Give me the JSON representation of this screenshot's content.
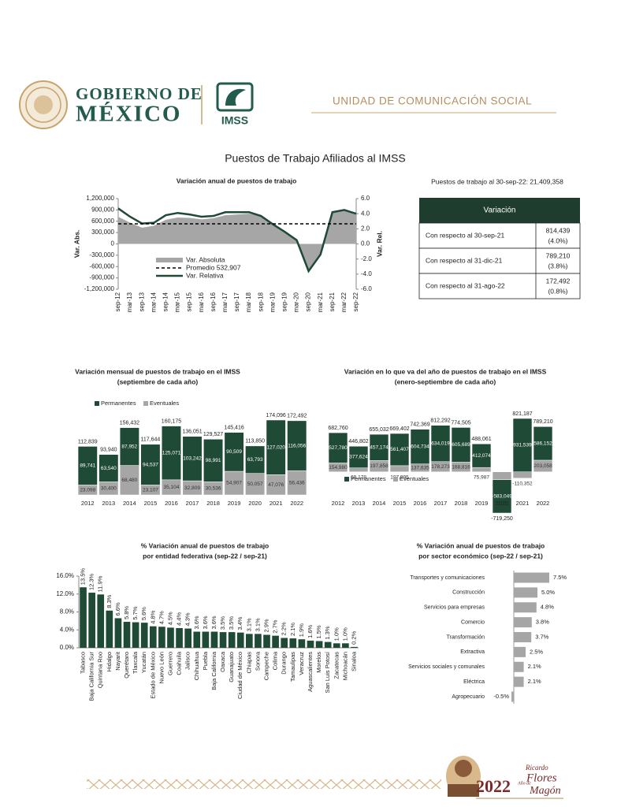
{
  "header": {
    "gov_line1": "GOBIERNO DE",
    "gov_line2": "MÉXICO",
    "imss": "IMSS",
    "unit": "UNIDAD DE COMUNICACIÓN SOCIAL"
  },
  "title": "Puestos de Trabajo Afiliados al IMSS",
  "table": {
    "note": "Puestos de trabajo al 30-sep-22: 21,409,358",
    "header": "Variación",
    "rows": [
      [
        "Con respecto al 30-sep-21",
        "814,439",
        "(4.0%)"
      ],
      [
        "Con respecto al 31-dic-21",
        "789,210",
        "(3.8%)"
      ],
      [
        "Con respecto al 31-ago-22",
        "172,492",
        "(0.8%)"
      ]
    ]
  },
  "chart_data": [
    {
      "type": "line",
      "title": "Variación anual de puestos de trabajo",
      "y_label": "Var. Abs.",
      "y2_label": "Var. Rel.",
      "categories": [
        "sep-12",
        "mar-13",
        "sep-13",
        "mar-14",
        "sep-14",
        "mar-15",
        "sep-15",
        "mar-16",
        "sep-16",
        "mar-17",
        "sep-17",
        "mar-18",
        "sep-18",
        "mar-19",
        "sep-19",
        "mar-20",
        "sep-20",
        "mar-21",
        "sep-21",
        "mar-22",
        "sep-22"
      ],
      "series": [
        {
          "name": "Var. Absoluta",
          "color": "#a6a6a6",
          "style": "area",
          "values": [
            720000,
            560000,
            430000,
            480000,
            640000,
            700000,
            690000,
            650000,
            680000,
            760000,
            780000,
            800000,
            730000,
            500000,
            330000,
            100000,
            -730000,
            -280000,
            846000,
            900000,
            814439
          ]
        },
        {
          "name": "Var. Relativa",
          "color": "#1f4a36",
          "axis": "y2",
          "values": [
            4.7,
            3.6,
            2.7,
            2.8,
            3.8,
            4.1,
            3.9,
            3.6,
            3.7,
            4.2,
            4.2,
            4.2,
            3.7,
            2.6,
            1.6,
            0.5,
            -3.6,
            -1.4,
            4.2,
            4.5,
            4.0
          ]
        }
      ],
      "reference_line": {
        "name": "Promedio 532,907",
        "value": 532907,
        "color": "#000000",
        "dashed": true
      },
      "ylim": [
        -1200000,
        1200000
      ],
      "yticks": [
        {
          "value": 1200000,
          "label": "1,200,000"
        },
        {
          "value": 900000,
          "label": "900,000"
        },
        {
          "value": 600000,
          "label": "600,000"
        },
        {
          "value": 300000,
          "label": "300,000"
        },
        0,
        {
          "value": -300000,
          "label": "-300,000"
        },
        {
          "value": -600000,
          "label": "-600,000"
        },
        {
          "value": -900000,
          "label": "-900,000"
        },
        {
          "value": -1200000,
          "label": "-1,200,000"
        }
      ],
      "y2lim": [
        -6,
        6
      ],
      "y2ticks": [
        {
          "value": 6,
          "label": "6.0"
        },
        {
          "value": 4,
          "label": "4.0"
        },
        {
          "value": 2,
          "label": "2.0"
        },
        {
          "value": 0,
          "label": "0.0"
        },
        {
          "value": -2,
          "label": "-2.0"
        },
        {
          "value": -4,
          "label": "-4.0"
        },
        {
          "value": -6,
          "label": "-6.0"
        }
      ]
    },
    {
      "type": "bar",
      "stacked": true,
      "title": "Variación mensual de puestos de trabajo en el IMSS",
      "subtitle": "(septiembre de cada año)",
      "categories": [
        "2012",
        "2013",
        "2014",
        "2015",
        "2016",
        "2017",
        "2018",
        "2019",
        "2020",
        "2021",
        "2022"
      ],
      "series": [
        {
          "name": "Eventuales",
          "color": "#a6a6a6",
          "values": [
            23098,
            30400,
            68480,
            23107,
            35104,
            32809,
            30536,
            54907,
            50057,
            47076,
            56436
          ],
          "value_labels": [
            "23,098",
            "30,400",
            "68,480",
            "23,107",
            "35,104",
            "32,809",
            "30,536",
            "54,907",
            "50,057",
            "47,076",
            "56,436"
          ]
        },
        {
          "name": "Permanentes",
          "color": "#1f4a36",
          "values": [
            89741,
            63540,
            87952,
            94537,
            125071,
            103242,
            98991,
            90509,
            63793,
            127020,
            116056
          ],
          "value_labels": [
            "89,741",
            "63,540",
            "87,952",
            "94,537",
            "125,071",
            "103,242",
            "98,991",
            "90,509",
            "63,793",
            "127,020",
            "116,056"
          ]
        }
      ],
      "totals": {
        "values": [
          112839,
          93940,
          156432,
          117644,
          160175,
          136051,
          129527,
          145416,
          113850,
          174096,
          172492
        ],
        "value_labels": [
          "112,839",
          "93,940",
          "156,432",
          "117,644",
          "160,175",
          "136,051",
          "129,527",
          "145,416",
          "113,850",
          "174,096",
          "172,492"
        ]
      }
    },
    {
      "type": "bar",
      "stacked": true,
      "title": "Variación en lo que va del año de puestos de trabajo en el IMSS",
      "subtitle": "(enero-septiembre de cada año)",
      "categories": [
        "2012",
        "2013",
        "2014",
        "2015",
        "2016",
        "2017",
        "2018",
        "2019",
        "2020",
        "2021",
        "2022"
      ],
      "series": [
        {
          "name": "Eventuales",
          "color": "#a6a6a6",
          "values": [
            154980,
            69178,
            197858,
            107995,
            137635,
            178273,
            168816,
            75987,
            -136201,
            -110352,
            203058
          ],
          "value_labels": [
            "154,980",
            "69,178",
            "197,858",
            "107,995",
            "137,635",
            "178,273",
            "168,816",
            "75,987",
            "-136,201",
            "-110,352",
            "203,058"
          ]
        },
        {
          "name": "Permanentes",
          "color": "#1f4a36",
          "values": [
            527780,
            377624,
            457174,
            561407,
            604734,
            634019,
            605689,
            412074,
            -583049,
            931539,
            586152
          ],
          "value_labels": [
            "527,780",
            "377,624",
            "457,174",
            "561,407",
            "604,734",
            "634,019",
            "605,689",
            "412,074",
            "-583,049",
            "931,539",
            "586,152"
          ]
        }
      ],
      "totals": {
        "values": [
          682760,
          446802,
          655032,
          669402,
          742369,
          812292,
          774505,
          488061,
          -719250,
          821187,
          789210
        ],
        "value_labels": [
          "682,760",
          "446,802",
          "655,032",
          "669,402",
          "742,369",
          "812,292",
          "774,505",
          "488,061",
          "-719,250",
          "821,187",
          "789,210"
        ]
      }
    },
    {
      "type": "bar",
      "title": "% Variación anual de puestos de trabajo",
      "subtitle": "por entidad federativa (sep-22 / sep-21)",
      "color": "#1f4a36",
      "categories": [
        "Tabasco",
        "Baja California Sur",
        "Quintana Roo",
        "Hidalgo",
        "Nayarit",
        "Querétaro",
        "Tlaxcala",
        "Yucatán",
        "Estado de México",
        "Nuevo León",
        "Guerrero",
        "Coahuila",
        "Jalisco",
        "Chihuahua",
        "Puebla",
        "Baja California",
        "Oaxaca",
        "Guanajuato",
        "Ciudad de México",
        "Chiapas",
        "Sonora",
        "Campeche",
        "Colima",
        "Durango",
        "Tamaulipas",
        "Veracruz",
        "Aguascalientes",
        "Morelos",
        "San Luis Potosí",
        "Zacatecas",
        "Michoacán",
        "Sinaloa"
      ],
      "values": [
        13.5,
        12.3,
        11.9,
        8.3,
        6.6,
        5.8,
        5.7,
        5.6,
        4.8,
        4.7,
        4.5,
        4.4,
        4.3,
        3.6,
        3.6,
        3.6,
        3.5,
        3.5,
        3.4,
        3.1,
        3.1,
        2.9,
        2.7,
        2.2,
        2.1,
        1.9,
        1.6,
        1.5,
        1.3,
        1.0,
        1.0,
        0.2
      ],
      "value_labels": [
        "13.5%",
        "12.3%",
        "11.9%",
        "8.3%",
        "6.6%",
        "5.8%",
        "5.7%",
        "5.6%",
        "4.8%",
        "4.7%",
        "4.5%",
        "4.4%",
        "4.3%",
        "3.6%",
        "3.6%",
        "3.6%",
        "3.5%",
        "3.5%",
        "3.4%",
        "3.1%",
        "3.1%",
        "2.9%",
        "2.7%",
        "2.2%",
        "2.1%",
        "1.9%",
        "1.6%",
        "1.5%",
        "1.3%",
        "1.0%",
        "1.0%",
        "0.2%"
      ],
      "ylim": [
        0,
        16
      ],
      "yticks": [
        {
          "value": 0,
          "label": "0.0%"
        },
        {
          "value": 4,
          "label": "4.0%"
        },
        {
          "value": 8,
          "label": "8.0%"
        },
        {
          "value": 12,
          "label": "12.0%"
        },
        {
          "value": 16,
          "label": "16.0%"
        }
      ]
    },
    {
      "type": "bar",
      "orientation": "horizontal",
      "title": "% Variación anual de puestos de trabajo",
      "subtitle": "por sector económico (sep-22 / sep-21)",
      "color": "#a6a6a6",
      "categories": [
        "Transportes y comunicaciones",
        "Construcción",
        "Servicios para empresas",
        "Comercio",
        "Transformación",
        "Extractiva",
        "Servicios sociales y comunales",
        "Eléctrica",
        "Agropecuario"
      ],
      "values": [
        7.5,
        5.0,
        4.8,
        3.8,
        3.7,
        2.5,
        2.1,
        2.1,
        -0.5
      ],
      "value_labels": [
        "7.5%",
        "5.0%",
        "4.8%",
        "3.8%",
        "3.7%",
        "2.5%",
        "2.1%",
        "2.1%",
        "-0.5%"
      ]
    }
  ],
  "footer": {
    "year": "2022",
    "first_name": "Ricardo",
    "surname1": "Flores",
    "surname2": "Magón",
    "prefix": "Año de"
  }
}
